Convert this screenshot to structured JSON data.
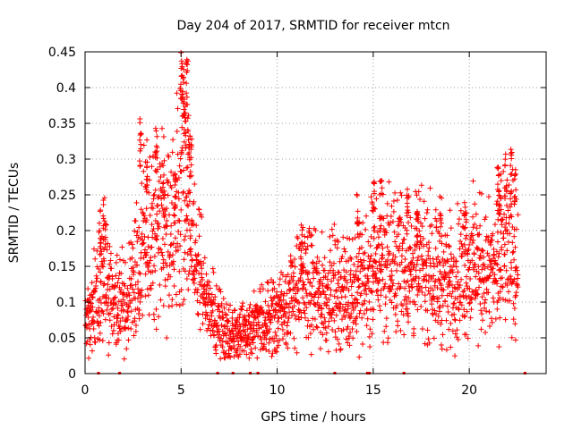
{
  "chart_data": {
    "type": "scatter",
    "title": "Day 204 of 2017, SRMTID for receiver mtcn",
    "xlabel": "GPS time / hours",
    "ylabel": "SRMTID / TECUs",
    "xlim": [
      0,
      24
    ],
    "ylim": [
      0,
      0.45
    ],
    "x_ticks": [
      0,
      5,
      10,
      15,
      20
    ],
    "x_tick_labels": [
      "0",
      "5",
      "10",
      "15",
      "20"
    ],
    "y_ticks": [
      0,
      0.05,
      0.1,
      0.15,
      0.2,
      0.25,
      0.3,
      0.35,
      0.4,
      0.45
    ],
    "y_tick_labels": [
      "0",
      "0.05",
      "0.1",
      "0.15",
      "0.2",
      "0.25",
      "0.3",
      "0.35",
      "0.4",
      "0.45"
    ],
    "grid": true,
    "marker": "+",
    "color": "#ff0000",
    "profile_x": [
      0.0,
      0.3,
      0.5,
      0.7,
      0.9,
      1.2,
      1.5,
      1.8,
      2.1,
      2.5,
      2.8,
      3.1,
      3.5,
      3.8,
      4.2,
      4.6,
      5.0,
      5.3,
      5.6,
      6.0,
      6.5,
      7.0,
      7.5,
      8.0,
      8.5,
      9.0,
      9.5,
      10.0,
      10.5,
      11.0,
      11.5,
      12.0,
      12.5,
      13.0,
      13.5,
      14.0,
      14.5,
      15.0,
      15.5,
      16.0,
      16.5,
      17.0,
      17.5,
      18.0,
      18.5,
      19.0,
      19.5,
      20.0,
      20.5,
      21.0,
      21.5,
      22.0,
      22.5
    ],
    "profile_y": [
      0.065,
      0.08,
      0.1,
      0.12,
      0.14,
      0.12,
      0.11,
      0.1,
      0.1,
      0.12,
      0.15,
      0.19,
      0.18,
      0.2,
      0.22,
      0.21,
      0.25,
      0.24,
      0.18,
      0.13,
      0.085,
      0.07,
      0.06,
      0.055,
      0.06,
      0.065,
      0.075,
      0.085,
      0.1,
      0.12,
      0.13,
      0.11,
      0.11,
      0.12,
      0.11,
      0.12,
      0.13,
      0.14,
      0.16,
      0.15,
      0.16,
      0.14,
      0.15,
      0.15,
      0.13,
      0.13,
      0.14,
      0.15,
      0.15,
      0.14,
      0.14,
      0.17,
      0.15
    ],
    "spikes": [
      {
        "x": 1.0,
        "y": 0.25
      },
      {
        "x": 0.8,
        "y": 0.24
      },
      {
        "x": 2.9,
        "y": 0.36
      },
      {
        "x": 3.2,
        "y": 0.32
      },
      {
        "x": 3.7,
        "y": 0.35
      },
      {
        "x": 4.1,
        "y": 0.29
      },
      {
        "x": 4.7,
        "y": 0.3
      },
      {
        "x": 5.0,
        "y": 0.45
      },
      {
        "x": 5.1,
        "y": 0.43
      },
      {
        "x": 5.3,
        "y": 0.445
      },
      {
        "x": 5.2,
        "y": 0.39
      },
      {
        "x": 5.4,
        "y": 0.37
      },
      {
        "x": 5.5,
        "y": 0.33
      },
      {
        "x": 11.3,
        "y": 0.21
      },
      {
        "x": 14.2,
        "y": 0.26
      },
      {
        "x": 15.0,
        "y": 0.27
      },
      {
        "x": 15.4,
        "y": 0.27
      },
      {
        "x": 16.8,
        "y": 0.26
      },
      {
        "x": 17.3,
        "y": 0.25
      },
      {
        "x": 18.5,
        "y": 0.25
      },
      {
        "x": 19.8,
        "y": 0.24
      },
      {
        "x": 21.5,
        "y": 0.29
      },
      {
        "x": 22.2,
        "y": 0.32
      },
      {
        "x": 21.9,
        "y": 0.31
      },
      {
        "x": 22.4,
        "y": 0.3
      },
      {
        "x": 21.6,
        "y": 0.28
      }
    ],
    "zero_markers_x": [
      0.7,
      1.8,
      6.9,
      7.7,
      8.6,
      9.0,
      13.0,
      14.7,
      14.8,
      16.6,
      22.9
    ]
  }
}
